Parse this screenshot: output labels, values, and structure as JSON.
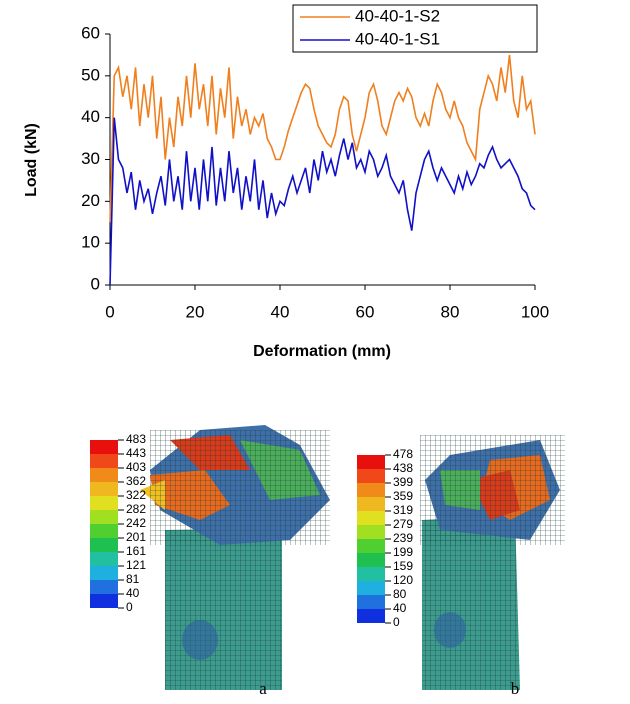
{
  "chart_data": {
    "type": "line",
    "x_label": "Deformation (mm)",
    "y_label": "Load (kN)",
    "x": [
      0,
      1,
      2,
      3,
      4,
      5,
      6,
      7,
      8,
      9,
      10,
      11,
      12,
      13,
      14,
      15,
      16,
      17,
      18,
      19,
      20,
      21,
      22,
      23,
      24,
      25,
      26,
      27,
      28,
      29,
      30,
      31,
      32,
      33,
      34,
      35,
      36,
      37,
      38,
      39,
      40,
      41,
      42,
      43,
      44,
      45,
      46,
      47,
      48,
      49,
      50,
      51,
      52,
      53,
      54,
      55,
      56,
      57,
      58,
      59,
      60,
      61,
      62,
      63,
      64,
      65,
      66,
      67,
      68,
      69,
      70,
      71,
      72,
      73,
      74,
      75,
      76,
      77,
      78,
      79,
      80,
      81,
      82,
      83,
      84,
      85,
      86,
      87,
      88,
      89,
      90,
      91,
      92,
      93,
      94,
      95,
      96,
      97,
      98,
      99,
      100
    ],
    "series": [
      {
        "name": "40-40-1-S2",
        "color": "#f07f1e",
        "values": [
          15,
          50,
          52,
          45,
          50,
          42,
          52,
          38,
          48,
          40,
          50,
          35,
          45,
          30,
          40,
          33,
          45,
          38,
          50,
          40,
          53,
          42,
          48,
          38,
          50,
          36,
          47,
          40,
          52,
          35,
          45,
          38,
          42,
          36,
          40,
          38,
          41,
          35,
          33,
          30,
          30,
          33,
          37,
          40,
          43,
          46,
          48,
          47,
          42,
          38,
          36,
          34,
          33,
          36,
          42,
          45,
          44,
          36,
          32,
          36,
          40,
          46,
          48,
          44,
          38,
          36,
          40,
          44,
          46,
          44,
          47,
          45,
          40,
          38,
          41,
          38,
          44,
          48,
          46,
          42,
          40,
          44,
          40,
          38,
          34,
          32,
          30,
          42,
          46,
          50,
          48,
          44,
          52,
          46,
          55,
          44,
          40,
          50,
          42,
          44,
          36
        ]
      },
      {
        "name": "40-40-1-S1",
        "color": "#1010c8",
        "values": [
          0,
          40,
          30,
          28,
          22,
          27,
          18,
          25,
          20,
          23,
          17,
          22,
          26,
          19,
          30,
          20,
          26,
          18,
          32,
          20,
          28,
          18,
          30,
          20,
          33,
          19,
          28,
          20,
          32,
          22,
          28,
          18,
          26,
          20,
          30,
          18,
          25,
          16,
          22,
          17,
          20,
          19,
          23,
          26,
          22,
          25,
          28,
          22,
          30,
          25,
          32,
          27,
          30,
          26,
          31,
          35,
          30,
          34,
          28,
          30,
          27,
          32,
          30,
          26,
          28,
          31,
          26,
          24,
          22,
          25,
          18,
          13,
          22,
          26,
          30,
          32,
          28,
          25,
          28,
          26,
          24,
          22,
          26,
          23,
          27,
          24,
          26,
          29,
          28,
          31,
          33,
          30,
          28,
          29,
          30,
          28,
          26,
          23,
          22,
          19,
          18
        ]
      }
    ],
    "xlim": [
      0,
      100
    ],
    "xticks": [
      0,
      20,
      40,
      60,
      80,
      100
    ],
    "ylim": [
      0,
      60
    ],
    "yticks": [
      0,
      10,
      20,
      30,
      40,
      50,
      60
    ],
    "grid": false,
    "legend": "top-right"
  },
  "figures": [
    {
      "caption": "a",
      "colorbar": [
        "483",
        "443",
        "403",
        "362",
        "322",
        "282",
        "242",
        "201",
        "161",
        "121",
        "81",
        "40",
        "0"
      ]
    },
    {
      "caption": "b",
      "colorbar": [
        "478",
        "438",
        "399",
        "359",
        "319",
        "279",
        "239",
        "199",
        "159",
        "120",
        "80",
        "40",
        "0"
      ]
    }
  ]
}
